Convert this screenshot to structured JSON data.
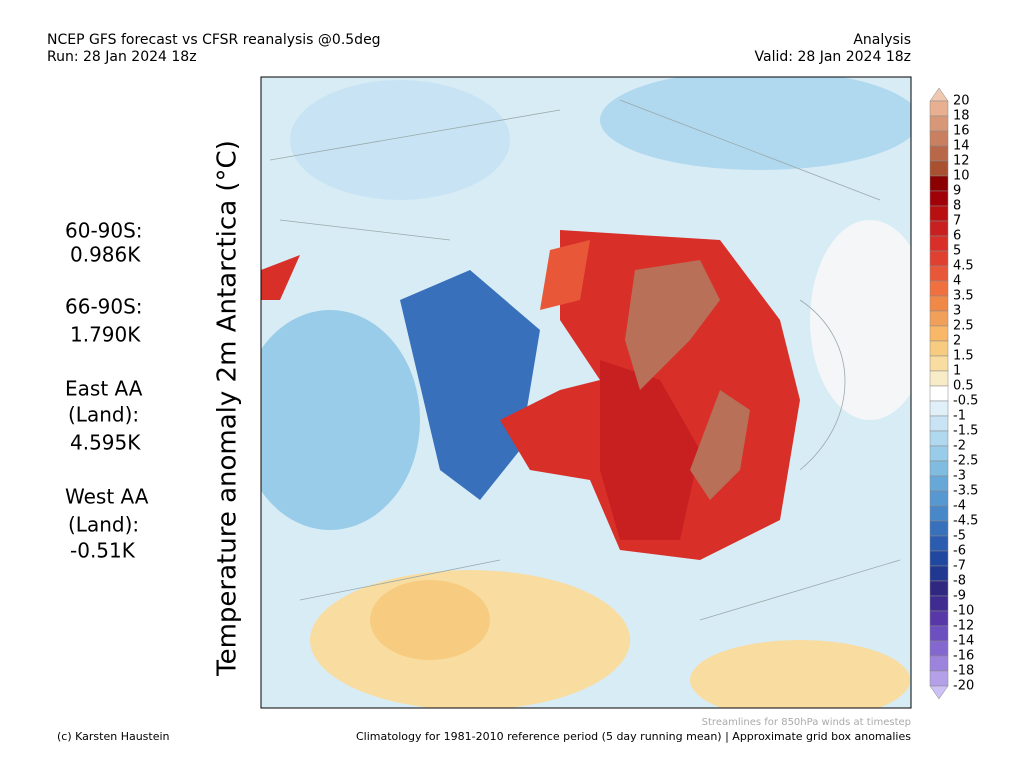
{
  "header": {
    "title": "NCEP GFS forecast vs CFSR reanalysis @0.5deg",
    "run": "Run: 28 Jan 2024 18z",
    "mode": "Analysis",
    "valid": "Valid: 28 Jan 2024 18z"
  },
  "axis_label": "Temperature anomaly 2m Antarctica (°C)",
  "stats": [
    "60-90S:",
    "0.986K",
    "66-90S:",
    "1.790K",
    "East AA",
    "(Land):",
    "4.595K",
    "West AA",
    "(Land):",
    "-0.51K"
  ],
  "colorbar": {
    "labels": [
      "20",
      "18",
      "16",
      "14",
      "12",
      "10",
      "9",
      "8",
      "7",
      "6",
      "5",
      "4.5",
      "4",
      "3.5",
      "3",
      "2.5",
      "2",
      "1.5",
      "1",
      "0.5",
      "-0.5",
      "-1",
      "-1.5",
      "-2",
      "-2.5",
      "-3",
      "-3.5",
      "-4",
      "-4.5",
      "-5",
      "-6",
      "-7",
      "-8",
      "-9",
      "-10",
      "-12",
      "-14",
      "-16",
      "-18",
      "-20"
    ],
    "colors": [
      "#f0c8b0",
      "#e8b090",
      "#d89878",
      "#c88060",
      "#b86848",
      "#a85030",
      "#8b0000",
      "#a00008",
      "#b81010",
      "#c82020",
      "#d83028",
      "#e04030",
      "#e85838",
      "#f07040",
      "#f08848",
      "#f0a058",
      "#f8b868",
      "#f8cc80",
      "#f8dca0",
      "#f8ecc8",
      "#ffffff",
      "#e0f0f8",
      "#c8e4f4",
      "#b0d8ee",
      "#98cce8",
      "#80bce0",
      "#68a8d8",
      "#5898d0",
      "#4888c8",
      "#3870bc",
      "#2c5cb0",
      "#2048a0",
      "#203890",
      "#302880",
      "#402c90",
      "#5838a8",
      "#6c50c0",
      "#8468d0",
      "#9c84dc",
      "#b4a0e8",
      "#ccc0f4"
    ]
  },
  "footer": {
    "streamlines": "Streamlines for 850hPa winds at timestep",
    "credit": "(c) Karsten Haustein",
    "climatology": "Climatology for 1981-2010 reference period (5 day running mean) | Approximate grid box anomalies"
  }
}
